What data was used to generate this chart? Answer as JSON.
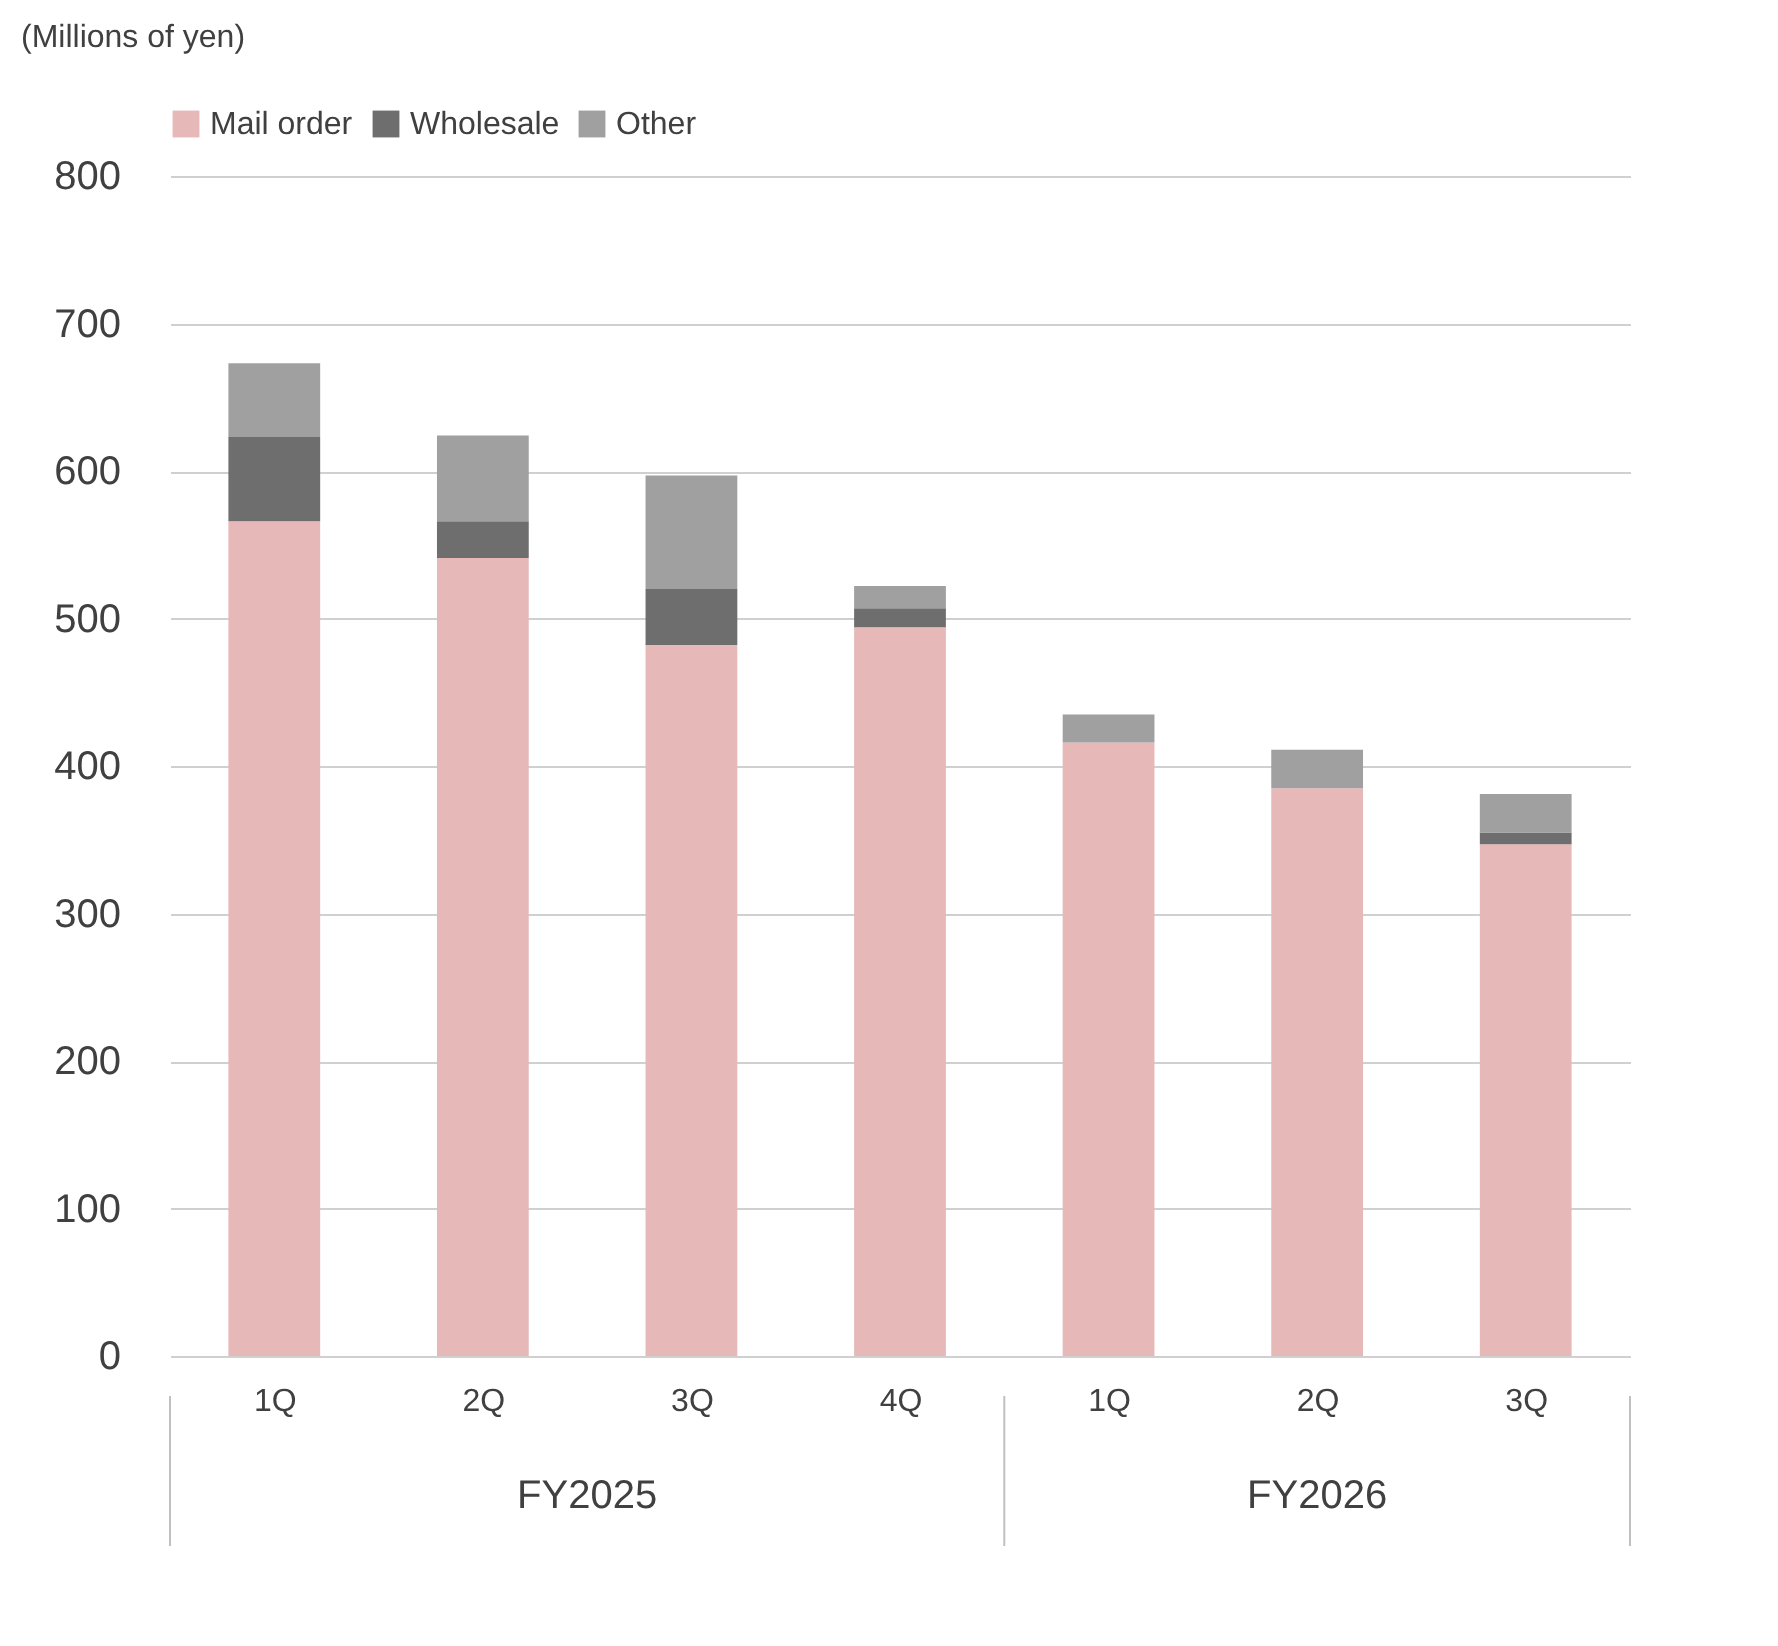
{
  "chart_data": {
    "type": "bar",
    "stacked": true,
    "ylabel": "(Millions of yen)",
    "categories": [
      "1Q",
      "2Q",
      "3Q",
      "4Q",
      "1Q",
      "2Q",
      "3Q"
    ],
    "annotations": [
      "FY2025",
      "FY2026"
    ],
    "series": [
      {
        "name": "Mail order",
        "color": "#e6b8b8",
        "values": [
          566,
          541,
          482,
          494,
          416,
          385,
          347
        ]
      },
      {
        "name": "Wholesale",
        "color": "#6e6e6e",
        "values": [
          57,
          25,
          38,
          13,
          null,
          null,
          8
        ]
      },
      {
        "name": "Other",
        "color": "#a0a0a0",
        "values": [
          50,
          58,
          77,
          15,
          19,
          26,
          26
        ]
      }
    ],
    "ylim": [
      0,
      800
    ],
    "yticks": [
      0,
      100,
      200,
      300,
      400,
      500,
      600,
      700,
      800
    ],
    "grid": "y",
    "legend": "top"
  }
}
